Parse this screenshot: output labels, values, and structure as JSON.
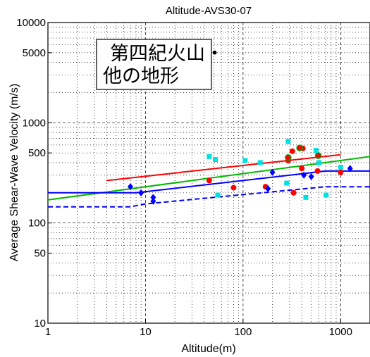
{
  "chart_data": {
    "type": "scatter",
    "title": "Altitude-AVS30-07",
    "xlabel": "Altitude(m)",
    "ylabel": "Average Shear-Wave Velocity (m/s)",
    "xscale": "log",
    "yscale": "log",
    "xlim": [
      1,
      2000
    ],
    "ylim": [
      10,
      10000
    ],
    "grid": true,
    "x_ticks": [
      {
        "value": 1,
        "label": "1"
      },
      {
        "value": 10,
        "label": "10"
      },
      {
        "value": 100,
        "label": "100"
      },
      {
        "value": 1000,
        "label": "1000"
      }
    ],
    "y_ticks": [
      {
        "value": 10,
        "label": "10"
      },
      {
        "value": 50,
        "label": "50"
      },
      {
        "value": 100,
        "label": "100"
      },
      {
        "value": 500,
        "label": "500"
      },
      {
        "value": 1000,
        "label": "1000"
      },
      {
        "value": 5000,
        "label": "5000"
      },
      {
        "value": 10000,
        "label": "10000"
      }
    ],
    "annotation": [
      "第四紀火山・",
      "他の地形"
    ],
    "lines": [
      {
        "color": "#ff0000",
        "style": "solid",
        "points": [
          [
            4,
            265
          ],
          [
            1000,
            480
          ]
        ]
      },
      {
        "color": "#00bb00",
        "style": "solid",
        "points": [
          [
            1,
            170
          ],
          [
            2000,
            460
          ]
        ]
      },
      {
        "color": "#0000ff",
        "style": "solid",
        "points": [
          [
            1,
            200
          ],
          [
            8,
            200
          ],
          [
            700,
            330
          ],
          [
            2000,
            330
          ]
        ]
      },
      {
        "color": "#0000ff",
        "style": "dashed",
        "points": [
          [
            1,
            145
          ],
          [
            7,
            145
          ],
          [
            10,
            155
          ],
          [
            700,
            230
          ],
          [
            2000,
            230
          ]
        ]
      }
    ],
    "series": [
      {
        "marker": "circle",
        "color": "#ff0000",
        "points": [
          [
            45,
            265
          ],
          [
            80,
            225
          ],
          [
            170,
            230
          ],
          [
            290,
            420
          ],
          [
            320,
            520
          ],
          [
            330,
            200
          ],
          [
            400,
            350
          ],
          [
            410,
            555
          ],
          [
            580,
            330
          ],
          [
            1000,
            320
          ]
        ]
      },
      {
        "marker": "circle-green-edge",
        "color": "#ff0000",
        "points": [
          [
            290,
            450
          ],
          [
            380,
            560
          ],
          [
            590,
            470
          ]
        ]
      },
      {
        "marker": "square",
        "color": "#00e0e0",
        "points": [
          [
            45,
            460
          ],
          [
            52,
            430
          ],
          [
            55,
            190
          ],
          [
            105,
            420
          ],
          [
            150,
            400
          ],
          [
            280,
            250
          ],
          [
            290,
            650
          ],
          [
            440,
            180
          ],
          [
            560,
            530
          ],
          [
            600,
            400
          ],
          [
            710,
            190
          ],
          [
            1000,
            360
          ]
        ]
      },
      {
        "marker": "diamond",
        "color": "#0000ff",
        "points": [
          [
            7,
            230
          ],
          [
            9,
            200
          ],
          [
            12,
            165
          ],
          [
            12,
            180
          ],
          [
            180,
            220
          ],
          [
            200,
            320
          ],
          [
            420,
            300
          ],
          [
            500,
            290
          ],
          [
            1250,
            350
          ]
        ]
      }
    ]
  }
}
